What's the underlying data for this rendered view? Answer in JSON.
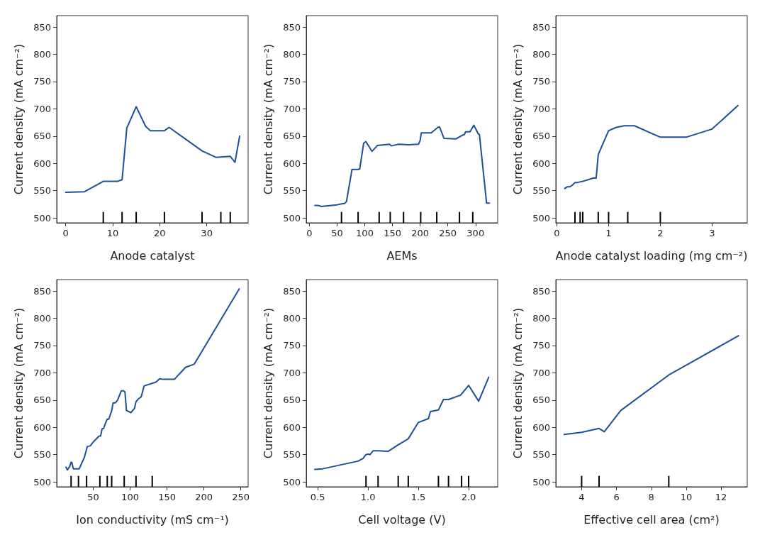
{
  "chart_data": [
    {
      "type": "line",
      "xlabel": "Anode catalyst",
      "ylabel": "Current density (mA cm⁻²)",
      "xlim": [
        -1.9,
        38.8
      ],
      "xticks": [
        0,
        10,
        20,
        30
      ],
      "ylim": [
        491,
        871
      ],
      "yticks": [
        500,
        550,
        600,
        650,
        700,
        750,
        800,
        850
      ],
      "grid": false,
      "series": [
        {
          "color": "#1f4e9a",
          "x": [
            0,
            4,
            8,
            11,
            12,
            13,
            15,
            17,
            18,
            21,
            22,
            29,
            32,
            35,
            36,
            37
          ],
          "values": [
            547,
            548,
            567,
            567,
            570,
            665,
            704,
            668,
            660,
            660,
            666,
            623,
            611,
            613,
            602,
            650
          ]
        },
        {
          "type": "bar",
          "color": "#000000",
          "x": [
            8,
            12,
            15,
            21,
            29,
            33,
            35
          ],
          "values": [
            511,
            511,
            511,
            511,
            511,
            511,
            511
          ]
        }
      ]
    },
    {
      "type": "line",
      "xlabel": "AEMs",
      "ylabel": "Current density (mA cm⁻²)",
      "xlim": [
        -5.6,
        340
      ],
      "xticks": [
        0,
        50,
        100,
        150,
        200,
        250,
        300
      ],
      "ylim": [
        491,
        871
      ],
      "yticks": [
        500,
        550,
        600,
        650,
        700,
        750,
        800,
        850
      ],
      "grid": false,
      "series": [
        {
          "color": "#1f4e9a",
          "x": [
            10,
            15,
            22,
            30,
            40,
            50,
            60,
            63,
            67,
            77,
            88,
            91,
            98,
            102,
            113,
            123,
            145,
            148,
            160,
            180,
            197,
            200,
            202,
            220,
            232,
            235,
            243,
            265,
            275,
            280,
            282,
            290,
            297,
            305,
            307,
            320,
            325
          ],
          "values": [
            523,
            523,
            521,
            522,
            523,
            524,
            526,
            526,
            530,
            589,
            589,
            590,
            637,
            640,
            622,
            633,
            635,
            632,
            635,
            634,
            635,
            642,
            656,
            656,
            666,
            667,
            646,
            645,
            651,
            653,
            658,
            658,
            670,
            654,
            653,
            527,
            527
          ]
        },
        {
          "type": "bar",
          "color": "#000000",
          "x": [
            58,
            88,
            126,
            146,
            170,
            201,
            230,
            271,
            295
          ],
          "values": [
            511,
            511,
            511,
            511,
            511,
            511,
            511,
            511,
            511
          ]
        }
      ]
    },
    {
      "type": "line",
      "xlabel": "Anode catalyst loading (mg cm⁻²)",
      "ylabel": "Current density (mA cm⁻²)",
      "xlim": [
        -0.02,
        3.68
      ],
      "xticks": [
        0,
        1,
        2,
        3
      ],
      "ylim": [
        491,
        871
      ],
      "yticks": [
        500,
        550,
        600,
        650,
        700,
        750,
        800,
        850
      ],
      "grid": false,
      "series": [
        {
          "color": "#1f4e9a",
          "x": [
            0.15,
            0.2,
            0.25,
            0.3,
            0.35,
            0.4,
            0.5,
            0.7,
            0.76,
            0.8,
            1.0,
            1.15,
            1.3,
            1.5,
            2.0,
            2.5,
            3.0,
            3.5
          ],
          "values": [
            554,
            557,
            557,
            560,
            565,
            565,
            567,
            573,
            573,
            616,
            660,
            666,
            669,
            669,
            648,
            648,
            663,
            706
          ]
        },
        {
          "type": "bar",
          "color": "#000000",
          "x": [
            0.35,
            0.45,
            0.5,
            0.8,
            1.0,
            1.37,
            2.0
          ],
          "values": [
            511,
            511,
            511,
            511,
            511,
            511,
            511
          ]
        }
      ]
    },
    {
      "type": "line",
      "xlabel": "Ion conductivity (mS cm⁻¹)",
      "ylabel": "Current density (mA cm⁻²)",
      "xlim": [
        0.5,
        260
      ],
      "xticks": [
        50,
        100,
        150,
        200,
        250
      ],
      "ylim": [
        491,
        871
      ],
      "yticks": [
        500,
        550,
        600,
        650,
        700,
        750,
        800,
        850
      ],
      "grid": false,
      "series": [
        {
          "color": "#1f4e9a",
          "x": [
            13,
            15,
            18,
            20,
            21,
            23,
            31,
            38,
            42,
            46,
            50,
            58,
            60,
            62,
            64,
            67,
            69,
            71,
            75,
            77,
            80,
            83,
            88,
            91,
            93,
            95,
            101,
            106,
            108,
            111,
            115,
            119,
            135,
            140,
            145,
            160,
            175,
            187,
            248
          ],
          "values": [
            527,
            522,
            528,
            536,
            536,
            524,
            524,
            545,
            565,
            566,
            573,
            584,
            584,
            597,
            598,
            609,
            615,
            615,
            630,
            645,
            645,
            650,
            667,
            667,
            665,
            631,
            627,
            635,
            647,
            652,
            656,
            676,
            683,
            689,
            688,
            688,
            710,
            716,
            854
          ]
        },
        {
          "type": "bar",
          "color": "#000000",
          "x": [
            20,
            30,
            41,
            59,
            69,
            75,
            92,
            108,
            130
          ],
          "values": [
            511,
            511,
            511,
            511,
            511,
            511,
            511,
            511,
            511
          ]
        }
      ]
    },
    {
      "type": "line",
      "xlabel": "Cell voltage (V)",
      "ylabel": "Current density (mA cm⁻²)",
      "xlim": [
        0.386,
        2.289
      ],
      "xticks": [
        {
          "value": 0.5,
          "label": "0.5"
        },
        {
          "value": 1,
          "label": "1.0"
        },
        {
          "value": 1.5,
          "label": "1.5"
        },
        {
          "value": 2,
          "label": "2.0"
        }
      ],
      "ylim": [
        491,
        871
      ],
      "yticks": [
        500,
        550,
        600,
        650,
        700,
        750,
        800,
        850
      ],
      "grid": false,
      "series": [
        {
          "color": "#1f4e9a",
          "x": [
            0.47,
            0.55,
            0.9,
            0.95,
            0.98,
            1.0,
            1.02,
            1.05,
            1.1,
            1.2,
            1.3,
            1.4,
            1.5,
            1.6,
            1.62,
            1.7,
            1.75,
            1.8,
            1.92,
            2.0,
            2.1,
            2.2
          ],
          "values": [
            523,
            524,
            538,
            543,
            550,
            551,
            550,
            557,
            557,
            556,
            568,
            579,
            609,
            616,
            629,
            632,
            651,
            651,
            659,
            677,
            648,
            692
          ]
        },
        {
          "type": "bar",
          "color": "#000000",
          "x": [
            0.98,
            1.1,
            1.3,
            1.4,
            1.7,
            1.8,
            1.93,
            2.0
          ],
          "values": [
            511,
            511,
            511,
            511,
            511,
            511,
            511,
            511
          ]
        }
      ]
    },
    {
      "type": "line",
      "xlabel": "Effective cell area (cm²)",
      "ylabel": "Current density (mA cm⁻²)",
      "xlim": [
        2.52,
        13.5
      ],
      "xticks": [
        4,
        6,
        8,
        10,
        12
      ],
      "ylim": [
        491,
        871
      ],
      "yticks": [
        500,
        550,
        600,
        650,
        700,
        750,
        800,
        850
      ],
      "grid": false,
      "series": [
        {
          "color": "#1f4e9a",
          "x": [
            3,
            4,
            5,
            5.3,
            6.25,
            9,
            13
          ],
          "values": [
            587,
            591,
            598,
            592,
            631,
            696,
            768
          ]
        },
        {
          "type": "bar",
          "color": "#000000",
          "x": [
            4,
            5,
            9
          ],
          "values": [
            511,
            511,
            511
          ]
        }
      ]
    }
  ]
}
